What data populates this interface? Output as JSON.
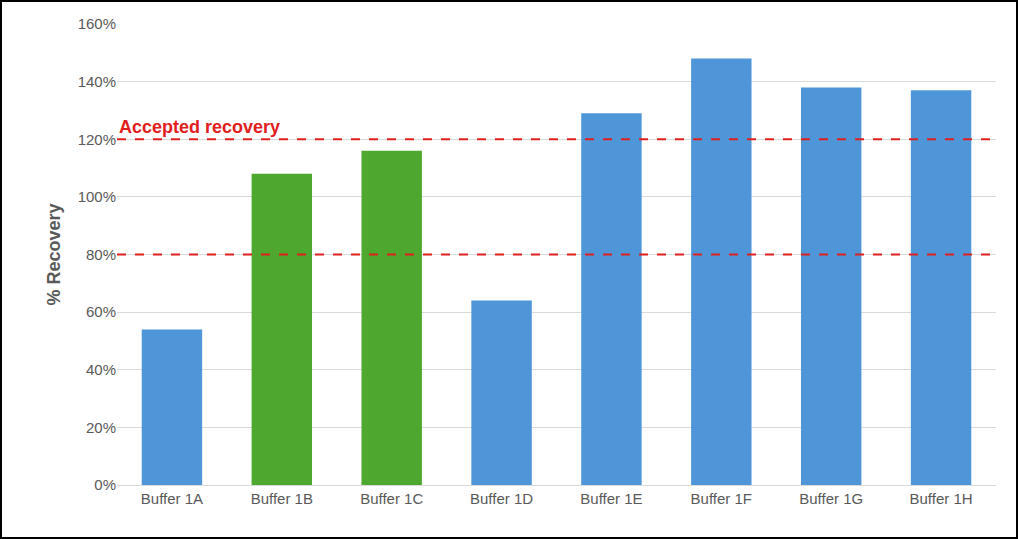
{
  "chart_data": {
    "type": "bar",
    "categories": [
      "Buffer 1A",
      "Buffer 1B",
      "Buffer 1C",
      "Buffer 1D",
      "Buffer 1E",
      "Buffer 1F",
      "Buffer 1G",
      "Buffer 1H"
    ],
    "values": [
      54,
      108,
      116,
      64,
      129,
      148,
      138,
      137
    ],
    "colors": [
      "#4f96d9",
      "#4ea72e",
      "#4ea72e",
      "#4f96d9",
      "#4f96d9",
      "#4f96d9",
      "#4f96d9",
      "#4f96d9"
    ],
    "y_label": "% Recovery",
    "ylim": [
      0,
      160
    ],
    "yticks": [
      {
        "value": 0,
        "label": "0%"
      },
      {
        "value": 20,
        "label": "20%"
      },
      {
        "value": 40,
        "label": "40%"
      },
      {
        "value": 60,
        "label": "60%"
      },
      {
        "value": 80,
        "label": "80%"
      },
      {
        "value": 100,
        "label": "100%"
      },
      {
        "value": 120,
        "label": "120%"
      },
      {
        "value": 140,
        "label": "140%"
      },
      {
        "value": 160,
        "label": "160%"
      }
    ],
    "reference_lines": [
      120,
      80
    ],
    "annotations": [
      "Accepted recovery"
    ],
    "grid": true
  }
}
